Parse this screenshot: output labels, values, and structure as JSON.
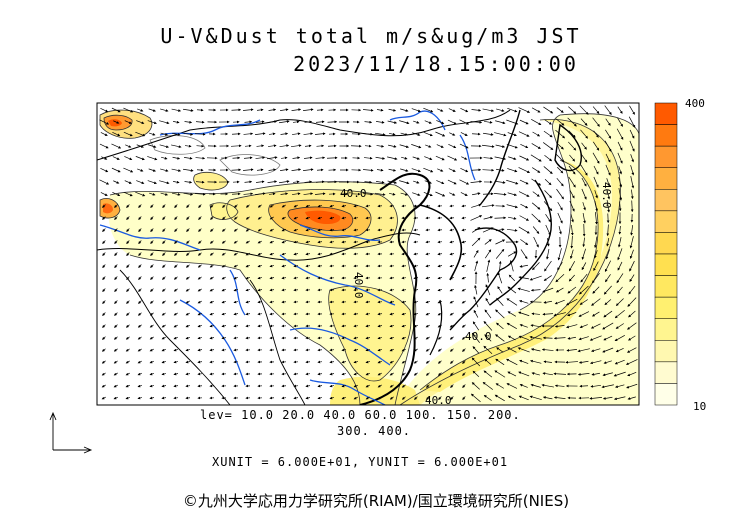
{
  "header": {
    "title": "U-V&Dust total m/s&ug/m3 JST",
    "timestamp": "2023/11/18.15:00:00"
  },
  "colorbar": {
    "max_label": "400",
    "min_label": "10",
    "colors": [
      "#ff5a00",
      "#ff7a10",
      "#ff9830",
      "#ffb040",
      "#ffc460",
      "#ffd060",
      "#ffd850",
      "#ffe050",
      "#ffe860",
      "#fff070",
      "#fff590",
      "#fff8b0",
      "#fffbd0",
      "#ffffe8"
    ]
  },
  "legend": {
    "levels_line1": "lev= 10.0 20.0 40.0 60.0 100. 150. 200.",
    "levels_line2": "300. 400.",
    "units": "XUNIT = 6.000E+01, YUNIT = 6.000E+01"
  },
  "contour_labels": [
    "40.0",
    "40.0",
    "40.0",
    "40.0",
    "40.0"
  ],
  "copyright": "©九州大学応用力学研究所(RIAM)/国立環境研究所(NIES)"
}
